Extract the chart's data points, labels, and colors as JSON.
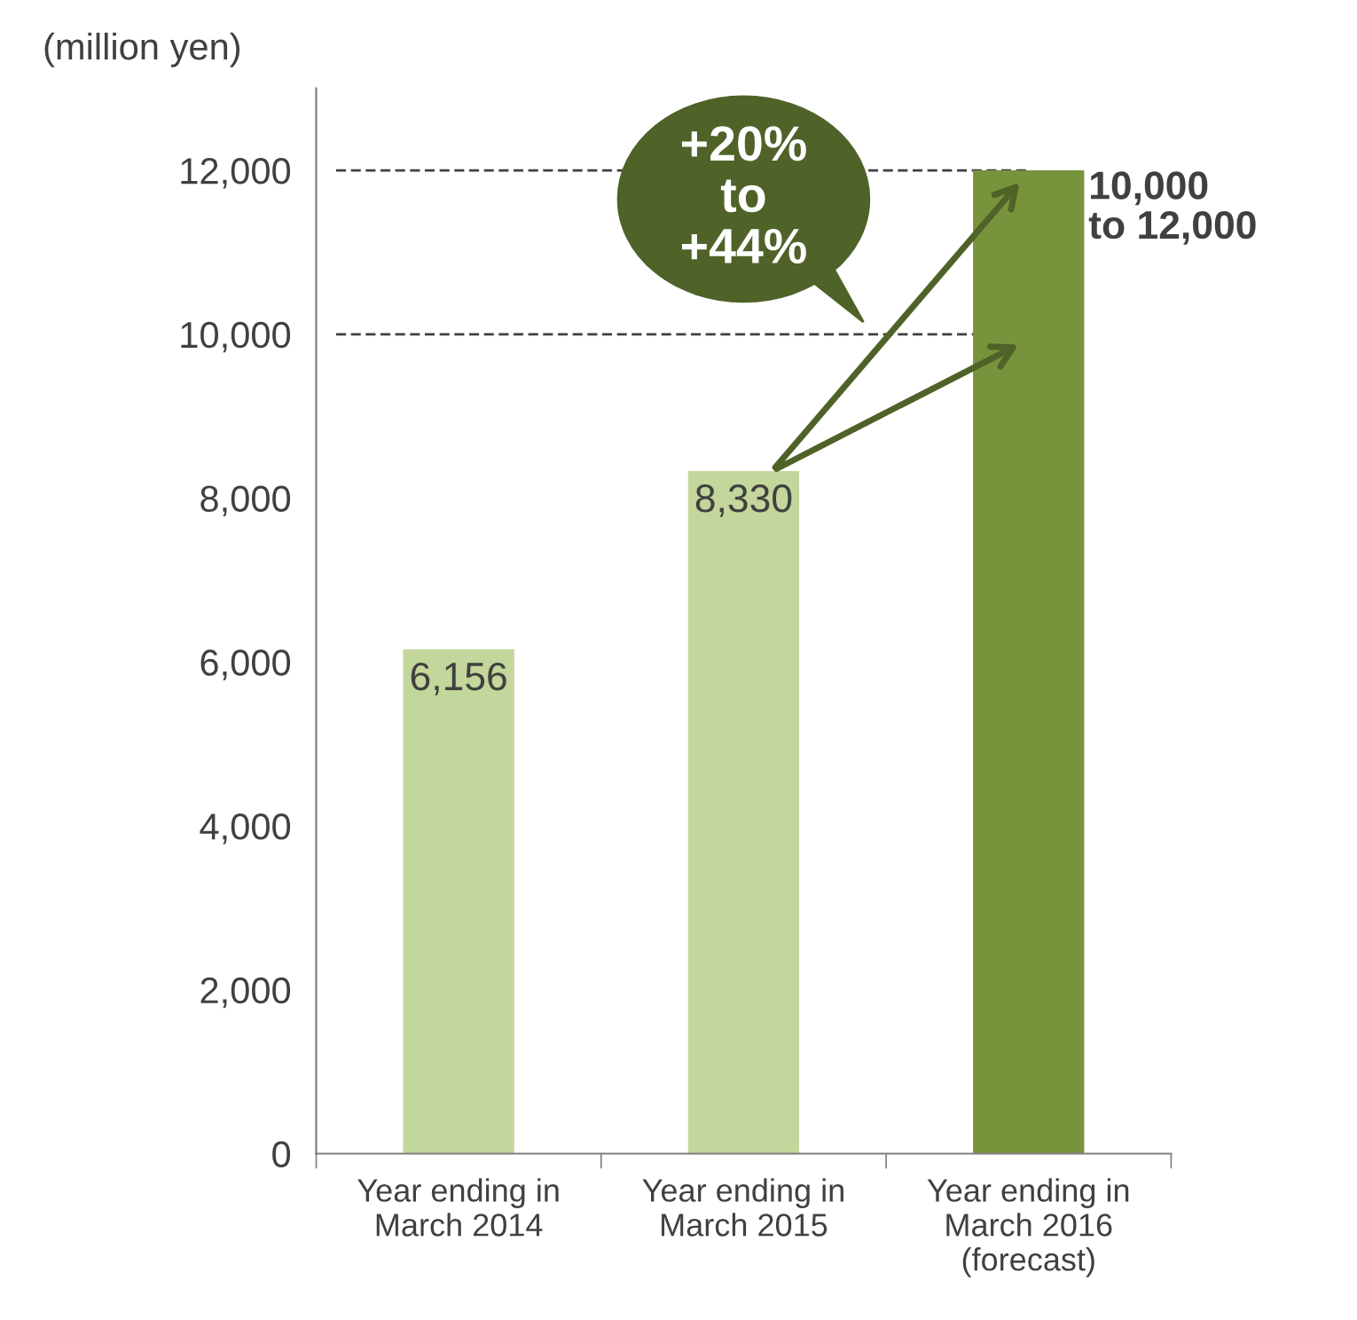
{
  "chart_data": {
    "type": "bar",
    "ylabel": "(million yen)",
    "categories": [
      "Year ending in\nMarch 2014",
      "Year ending in\nMarch 2015",
      "Year ending in\nMarch 2016\n(forecast)"
    ],
    "values": [
      6156,
      8330,
      12000
    ],
    "colors": [
      "#c3d69b",
      "#c3d69b",
      "#77933c"
    ],
    "value_labels": [
      "6,156",
      "8,330",
      null
    ],
    "ylim": [
      0,
      13000
    ],
    "yticks": [
      0,
      {
        "value": 2000,
        "label": "2,000"
      },
      {
        "value": 4000,
        "label": "4,000"
      },
      {
        "value": 6000,
        "label": "6,000"
      },
      {
        "value": 8000,
        "label": "8,000"
      },
      {
        "value": 10000,
        "label": "10,000"
      },
      {
        "value": 12000,
        "label": "12,000"
      }
    ],
    "ref_lines": [
      {
        "axis": "y",
        "value": 12000,
        "color": "#404040",
        "line_style": "dashed"
      },
      {
        "axis": "y",
        "value": 10000,
        "color": "#404040",
        "line_style": "dashed"
      }
    ],
    "annotations": [
      "+20%\nto\n+44%",
      {
        "text": "10,000\nto 12,000",
        "x": "Year ending in\nMarch 2016\n(forecast)",
        "y": 12000
      }
    ],
    "grid": false,
    "legend": false
  }
}
